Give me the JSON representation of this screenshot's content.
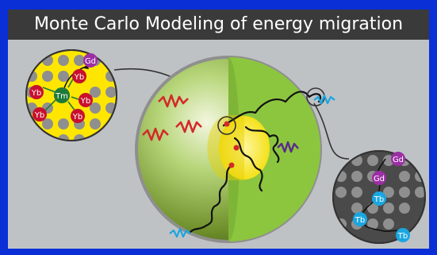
{
  "title": "Monte Carlo Modeling of energy migration",
  "colors": {
    "background": "#bfc2c5",
    "frame": "#0a2fd6",
    "title_bar": "#3a3a3a",
    "shell": "#8cc63f",
    "core": "#ffe600",
    "ion_yb": "#c8102e",
    "ion_tm": "#1e7a3a",
    "ion_gd": "#9b2fa3",
    "ion_tb": "#1aa6e0",
    "excitation_red": "#d22a2a",
    "emission_purple": "#5a2a8a",
    "emission_blue": "#1aa6e0"
  },
  "left_inset": {
    "labels": {
      "gd": "Gd",
      "tm": "Tm",
      "yb1": "Yb",
      "yb2": "Yb",
      "yb3": "Yb",
      "yb4": "Yb",
      "yb5": "Yb"
    }
  },
  "right_inset": {
    "labels": {
      "gd1": "Gd",
      "gd2": "Gd",
      "tb1": "Tb",
      "tb2": "Tb",
      "tb3": "Tb"
    }
  }
}
